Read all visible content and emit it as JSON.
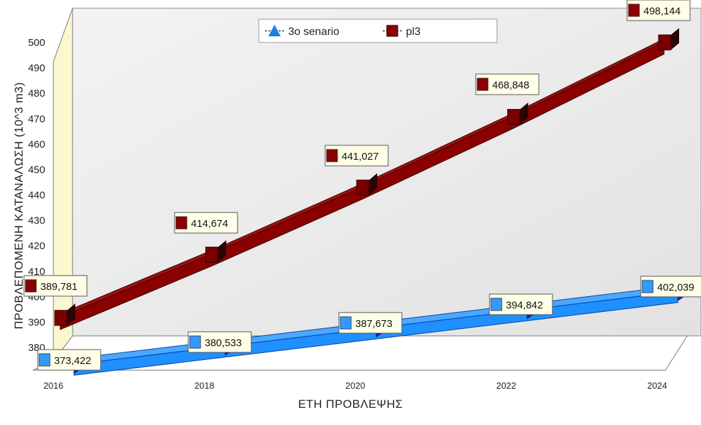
{
  "chart_data": {
    "type": "line",
    "xlabel": "ΕΤΗ ΠΡΟΒΛΕΨΗΣ",
    "ylabel": "ΠΡΟΒΛΕΠΟΜΕΝΗ ΚΑΤΑΝΑΛΩΣΗ (10^3 m3)",
    "x": [
      "2016",
      "2018",
      "2020",
      "2022",
      "2024"
    ],
    "y_ticks": [
      380,
      390,
      400,
      410,
      420,
      430,
      440,
      450,
      460,
      470,
      480,
      490,
      500
    ],
    "ylim": [
      380,
      500
    ],
    "grid": false,
    "legend_position": "top",
    "series": [
      {
        "name": "3o senario",
        "values": [
          373.422,
          380.533,
          387.673,
          394.842,
          402.039
        ],
        "labels": [
          "373,422",
          "380,533",
          "387,673",
          "394,842",
          "402,039"
        ],
        "color": "#1e90ff",
        "marker": "triangle"
      },
      {
        "name": "pl3",
        "values": [
          389.781,
          414.674,
          441.027,
          468.848,
          498.144
        ],
        "labels": [
          "389,781",
          "414,674",
          "441,027",
          "468,848",
          "498,144"
        ],
        "color": "#8b0000",
        "marker": "square"
      }
    ]
  }
}
